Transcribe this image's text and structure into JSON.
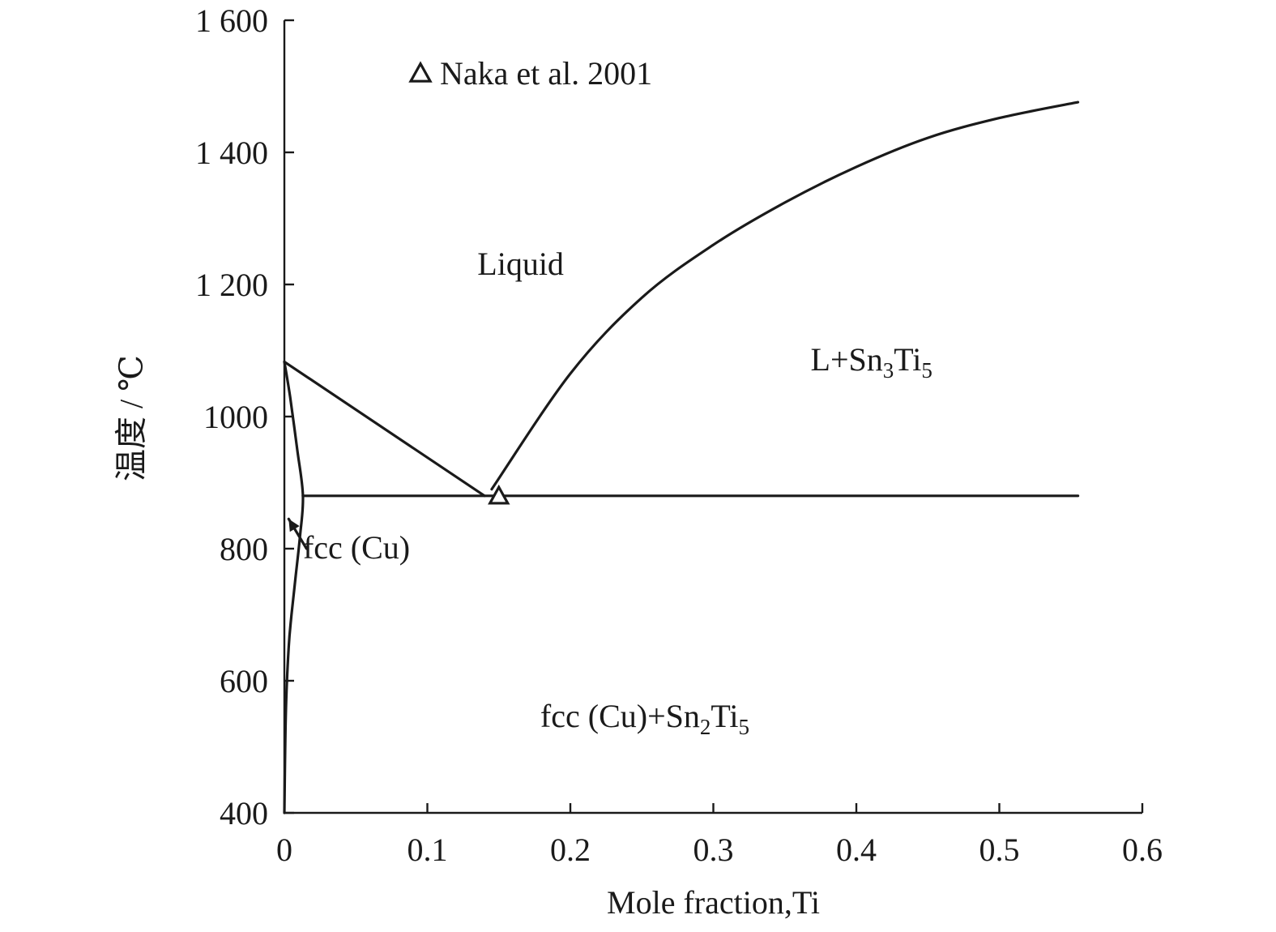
{
  "chart_data": {
    "type": "line",
    "title": "",
    "xlabel": "Mole fraction,Ti",
    "ylabel": "温度 / ℃",
    "xlim": [
      0,
      0.6
    ],
    "ylim": [
      400,
      1600
    ],
    "x_ticks": [
      0,
      0.1,
      0.2,
      0.3,
      0.4,
      0.5,
      0.6
    ],
    "x_tick_labels": [
      "0",
      "0.1",
      "0.2",
      "0.3",
      "0.4",
      "0.5",
      "0.6"
    ],
    "y_ticks": [
      400,
      600,
      800,
      1000,
      1200,
      1400,
      1600
    ],
    "y_tick_labels": [
      "400",
      "600",
      "800",
      "1000",
      "1 200",
      "1 400",
      "1 600"
    ],
    "grid": false,
    "series": [
      {
        "key": "liquidus-left",
        "x": [
          0,
          0.14
        ],
        "y": [
          1083,
          880
        ]
      },
      {
        "key": "liquidus-right",
        "x": [
          0.145,
          0.2,
          0.25,
          0.3,
          0.35,
          0.4,
          0.45,
          0.5,
          0.555
        ],
        "y": [
          890,
          1065,
          1180,
          1260,
          1324,
          1378,
          1422,
          1452,
          1476
        ]
      },
      {
        "key": "eutectic-isotherm",
        "x": [
          0.013,
          0.555
        ],
        "y": [
          880,
          880
        ]
      },
      {
        "key": "solidus-solvus",
        "x": [
          0,
          0.004,
          0.009,
          0.013,
          0.011,
          0.008,
          0.005,
          0.003,
          0.001,
          0
        ],
        "y": [
          1083,
          1030,
          950,
          880,
          820,
          760,
          700,
          650,
          550,
          400
        ]
      }
    ],
    "points": [
      {
        "x": 0.15,
        "y": 878
      }
    ],
    "annotations": [
      {
        "text": "Liquid",
        "x": 0.135,
        "y": 1215
      },
      {
        "text": "L+Sn3Ti5",
        "x": 0.368,
        "y": 1070
      },
      {
        "text": "fcc (Cu)",
        "x": 0.013,
        "y": 785
      },
      {
        "text": "fcc (Cu)+Sn2Ti5",
        "x": 0.179,
        "y": 530
      }
    ],
    "arrow": {
      "from": {
        "x": 0.0155,
        "y": 800
      },
      "to": {
        "x": 0.003,
        "y": 845
      }
    },
    "legend": {
      "position": "top-left",
      "entries": [
        {
          "label": "Naka et al. 2001",
          "marker": "triangle"
        }
      ]
    }
  },
  "labels": {
    "liquid": "Liquid",
    "l_sn3ti5": {
      "a": "L+Sn",
      "s1": "3",
      "b": "Ti",
      "s2": "5"
    },
    "fcc_cu": "fcc (Cu)",
    "fcc_cu_sn2ti5": {
      "a": "fcc (Cu)+Sn",
      "s1": "2",
      "b": "Ti",
      "s2": "5"
    }
  },
  "colors": {
    "ink": "#1a1a1a",
    "background": "#ffffff"
  }
}
